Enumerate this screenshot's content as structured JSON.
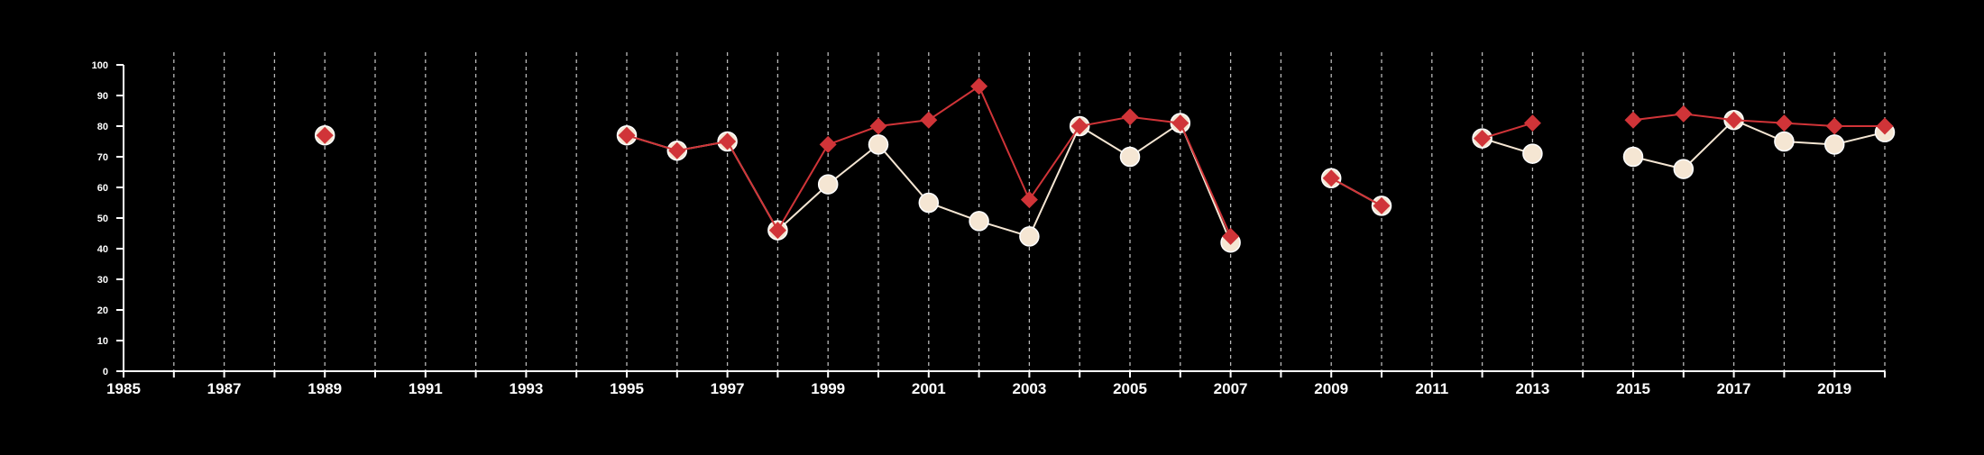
{
  "chart_data": {
    "type": "line",
    "title": "",
    "xlabel": "",
    "ylabel": "",
    "xlim": [
      1985,
      2020
    ],
    "ylim": [
      0,
      100
    ],
    "x_ticks": [
      1985,
      1987,
      1989,
      1991,
      1993,
      1995,
      1997,
      1999,
      2001,
      2003,
      2005,
      2007,
      2009,
      2011,
      2013,
      2015,
      2017,
      2019
    ],
    "y_ticks": [
      0,
      10,
      20,
      30,
      40,
      50,
      60,
      70,
      80,
      90,
      100
    ],
    "grid": "vertical dashed, yearly",
    "legend": "none",
    "series": [
      {
        "marker": "circle",
        "color": "#f5e6d3",
        "points": [
          [
            1989,
            77
          ],
          [
            1995,
            77
          ],
          [
            1996,
            72
          ],
          [
            1997,
            75
          ],
          [
            1998,
            46
          ],
          [
            1999,
            61
          ],
          [
            2000,
            74
          ],
          [
            2001,
            55
          ],
          [
            2002,
            49
          ],
          [
            2003,
            44
          ],
          [
            2004,
            80
          ],
          [
            2005,
            70
          ],
          [
            2006,
            81
          ],
          [
            2007,
            42
          ],
          [
            2009,
            63
          ],
          [
            2010,
            54
          ],
          [
            2012,
            76
          ],
          [
            2013,
            71
          ],
          [
            2015,
            70
          ],
          [
            2016,
            66
          ],
          [
            2017,
            82
          ],
          [
            2018,
            75
          ],
          [
            2019,
            74
          ],
          [
            2020,
            78
          ]
        ]
      },
      {
        "marker": "diamond",
        "color": "#d03438",
        "points": [
          [
            1989,
            77
          ],
          [
            1995,
            77
          ],
          [
            1996,
            72
          ],
          [
            1997,
            75
          ],
          [
            1998,
            46
          ],
          [
            1999,
            74
          ],
          [
            2000,
            80
          ],
          [
            2001,
            82
          ],
          [
            2002,
            93
          ],
          [
            2003,
            56
          ],
          [
            2004,
            80
          ],
          [
            2005,
            83
          ],
          [
            2006,
            81
          ],
          [
            2007,
            44
          ],
          [
            2009,
            63
          ],
          [
            2010,
            54
          ],
          [
            2012,
            76
          ],
          [
            2013,
            81
          ],
          [
            2015,
            82
          ],
          [
            2016,
            84
          ],
          [
            2017,
            82
          ],
          [
            2018,
            81
          ],
          [
            2019,
            80
          ],
          [
            2020,
            80
          ]
        ]
      }
    ]
  }
}
